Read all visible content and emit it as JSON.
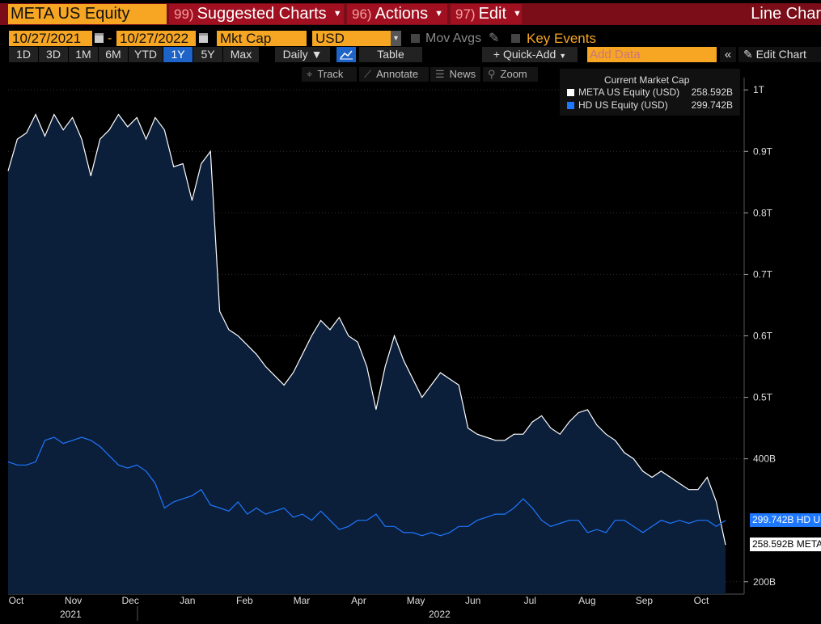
{
  "header": {
    "ticker": "META US Equity",
    "buttons": [
      {
        "num": "99)",
        "label": "Suggested Charts"
      },
      {
        "num": "96)",
        "label": "Actions"
      },
      {
        "num": "97)",
        "label": "Edit"
      }
    ],
    "title": "Line Char"
  },
  "controls": {
    "start_date": "10/27/2021",
    "end_date": "10/27/2022",
    "field": "Mkt Cap",
    "currency": "USD",
    "mov_avgs": "Mov Avgs",
    "key_events": "Key Events"
  },
  "toolbar": {
    "ranges": [
      "1D",
      "3D",
      "1M",
      "6M",
      "YTD",
      "1Y",
      "5Y",
      "Max"
    ],
    "selected_range": "1Y",
    "frequency": "Daily ▼",
    "table": "Table",
    "quick_add": "+ Quick-Add",
    "add_data_placeholder": "Add Data",
    "edit_chart": "Edit Chart"
  },
  "tools": [
    "Track",
    "Annotate",
    "News",
    "Zoom"
  ],
  "colors": {
    "meta": "#ffffff",
    "hd": "#1e78ff",
    "fill": "#0b1e3a",
    "accent": "#f6a623"
  },
  "chart_data": {
    "type": "line",
    "legend_title": "Current Market Cap",
    "legend_placement": "top-right",
    "series": [
      {
        "name": "META US Equity (USD)",
        "current": "258.592B",
        "last_label": "258.592B META",
        "values": [
          0.868,
          0.92,
          0.93,
          0.96,
          0.925,
          0.96,
          0.935,
          0.955,
          0.92,
          0.86,
          0.92,
          0.935,
          0.96,
          0.94,
          0.955,
          0.92,
          0.955,
          0.935,
          0.875,
          0.88,
          0.82,
          0.88,
          0.9,
          0.64,
          0.61,
          0.6,
          0.585,
          0.57,
          0.55,
          0.535,
          0.52,
          0.54,
          0.57,
          0.6,
          0.625,
          0.61,
          0.63,
          0.6,
          0.59,
          0.55,
          0.48,
          0.55,
          0.6,
          0.56,
          0.53,
          0.5,
          0.52,
          0.54,
          0.53,
          0.52,
          0.45,
          0.44,
          0.435,
          0.43,
          0.43,
          0.44,
          0.44,
          0.46,
          0.47,
          0.45,
          0.44,
          0.46,
          0.475,
          0.48,
          0.455,
          0.44,
          0.43,
          0.41,
          0.4,
          0.38,
          0.37,
          0.38,
          0.37,
          0.36,
          0.35,
          0.35,
          0.37,
          0.33,
          0.26
        ]
      },
      {
        "name": "HD US Equity (USD)",
        "current": "299.742B",
        "last_label": "299.742B HD U",
        "values": [
          0.395,
          0.39,
          0.39,
          0.395,
          0.43,
          0.435,
          0.425,
          0.43,
          0.435,
          0.43,
          0.42,
          0.405,
          0.39,
          0.385,
          0.39,
          0.38,
          0.36,
          0.32,
          0.33,
          0.335,
          0.34,
          0.35,
          0.325,
          0.32,
          0.315,
          0.33,
          0.31,
          0.32,
          0.31,
          0.315,
          0.32,
          0.305,
          0.31,
          0.3,
          0.315,
          0.3,
          0.285,
          0.29,
          0.3,
          0.3,
          0.31,
          0.29,
          0.29,
          0.28,
          0.28,
          0.275,
          0.28,
          0.275,
          0.28,
          0.29,
          0.29,
          0.3,
          0.305,
          0.31,
          0.31,
          0.32,
          0.335,
          0.32,
          0.3,
          0.29,
          0.295,
          0.3,
          0.3,
          0.28,
          0.285,
          0.28,
          0.3,
          0.3,
          0.29,
          0.28,
          0.29,
          0.3,
          0.295,
          0.3,
          0.295,
          0.3,
          0.3,
          0.29,
          0.3
        ]
      }
    ],
    "y_axis": {
      "min": 0.18,
      "max": 1.02,
      "unit": "T",
      "ticks": [
        {
          "v": 1.0,
          "label": "1T"
        },
        {
          "v": 0.9,
          "label": "0.9T"
        },
        {
          "v": 0.8,
          "label": "0.8T"
        },
        {
          "v": 0.7,
          "label": "0.7T"
        },
        {
          "v": 0.6,
          "label": "0.6T"
        },
        {
          "v": 0.5,
          "label": "0.5T"
        },
        {
          "v": 0.4,
          "label": "400B"
        },
        {
          "v": 0.2,
          "label": "200B"
        }
      ]
    },
    "x_axis": {
      "months": [
        "Oct",
        "Nov",
        "Dec",
        "Jan",
        "Feb",
        "Mar",
        "Apr",
        "May",
        "Jun",
        "Jul",
        "Aug",
        "Sep",
        "Oct"
      ],
      "years": [
        "2021",
        "2022"
      ]
    }
  }
}
